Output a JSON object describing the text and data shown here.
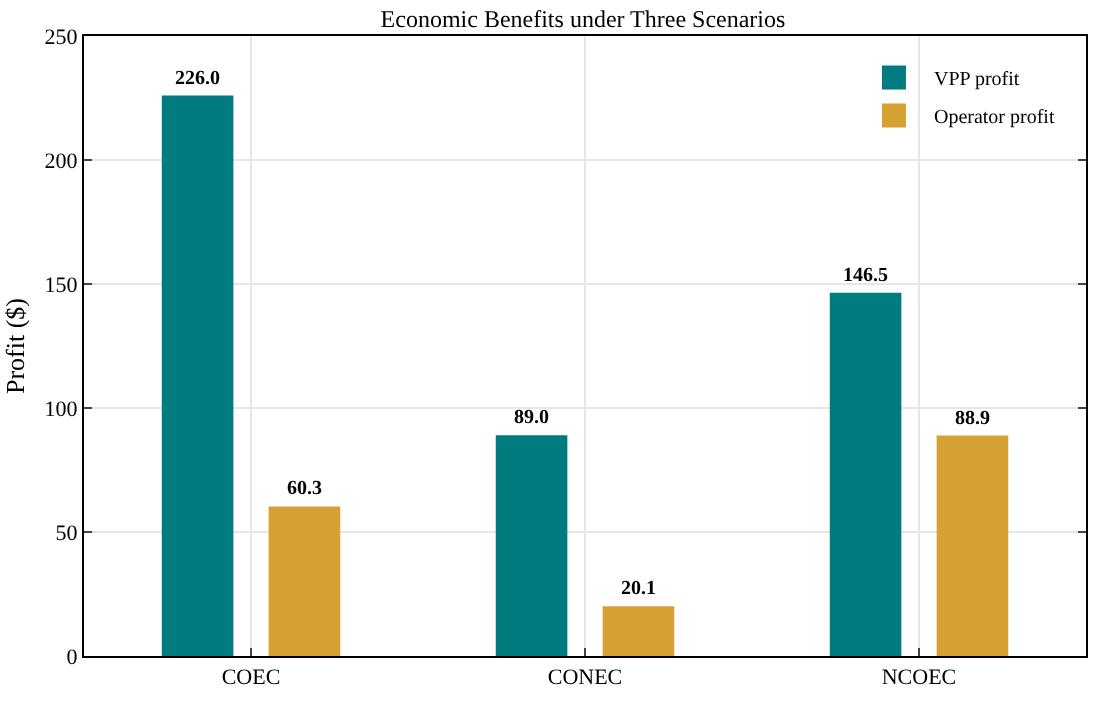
{
  "chart_data": {
    "type": "bar",
    "title": "Economic Benefits under Three Scenarios",
    "ylabel": "Profit ($)",
    "categories": [
      "COEC",
      "CONEC",
      "NCOEC"
    ],
    "series": [
      {
        "name": "VPP profit",
        "color": "#007b80",
        "values": [
          226.0,
          89.0,
          146.5
        ],
        "value_labels": [
          "226.0",
          "89.0",
          "146.5"
        ]
      },
      {
        "name": "Operator profit",
        "color": "#d6a033",
        "values": [
          60.3,
          20.1,
          88.9
        ],
        "value_labels": [
          "60.3",
          "20.1",
          "88.9"
        ]
      }
    ],
    "ylim": [
      0,
      250
    ],
    "yticks": [
      0,
      50,
      100,
      150,
      200,
      250
    ],
    "grid": true,
    "legend": "top right"
  }
}
